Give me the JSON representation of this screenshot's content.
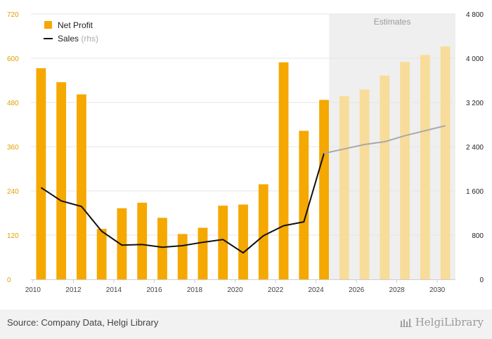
{
  "chart_data": {
    "type": "bar",
    "title": "",
    "x": [
      2010,
      2011,
      2012,
      2013,
      2014,
      2015,
      2016,
      2017,
      2018,
      2019,
      2020,
      2021,
      2022,
      2023,
      2024,
      2025,
      2026,
      2027,
      2028,
      2029,
      2030
    ],
    "series": [
      {
        "name": "Net Profit",
        "type": "bar",
        "axis": "left",
        "color": "#f5a800",
        "values": [
          573,
          535,
          502,
          137,
          193,
          208,
          167,
          123,
          140,
          200,
          203,
          258,
          589,
          403,
          487,
          497,
          515,
          553,
          590,
          609,
          632
        ]
      },
      {
        "name": "Sales",
        "name_suffix": "(rhs)",
        "type": "line",
        "axis": "right",
        "color": "#111111",
        "values": [
          1660,
          1420,
          1320,
          870,
          620,
          630,
          580,
          610,
          670,
          720,
          480,
          790,
          970,
          1040,
          2280,
          2360,
          2440,
          2490,
          2600,
          2690,
          2780
        ]
      }
    ],
    "estimates_from": 2025,
    "estimates_label": "Estimates",
    "estimate_bar_color": "#f8dc9a",
    "estimate_line_color": "#a8a8a8",
    "estimate_band_color": "#efefef",
    "y_left": {
      "lim": [
        0,
        720
      ],
      "ticks": [
        "0",
        "120",
        "240",
        "360",
        "480",
        "600",
        "720"
      ],
      "color": "#e0a000"
    },
    "y_right": {
      "lim": [
        0,
        4800
      ],
      "ticks": [
        "0",
        "800",
        "1 600",
        "2 400",
        "3 200",
        "4 000",
        "4 800"
      ]
    },
    "x_ticks": [
      "2010",
      "2012",
      "2014",
      "2016",
      "2018",
      "2020",
      "2022",
      "2024",
      "2026",
      "2028",
      "2030"
    ],
    "grid": true,
    "legend_position": "top-left"
  },
  "footer": {
    "source": "Source: Company Data, Helgi Library",
    "brand": "HelgiLibrary"
  }
}
